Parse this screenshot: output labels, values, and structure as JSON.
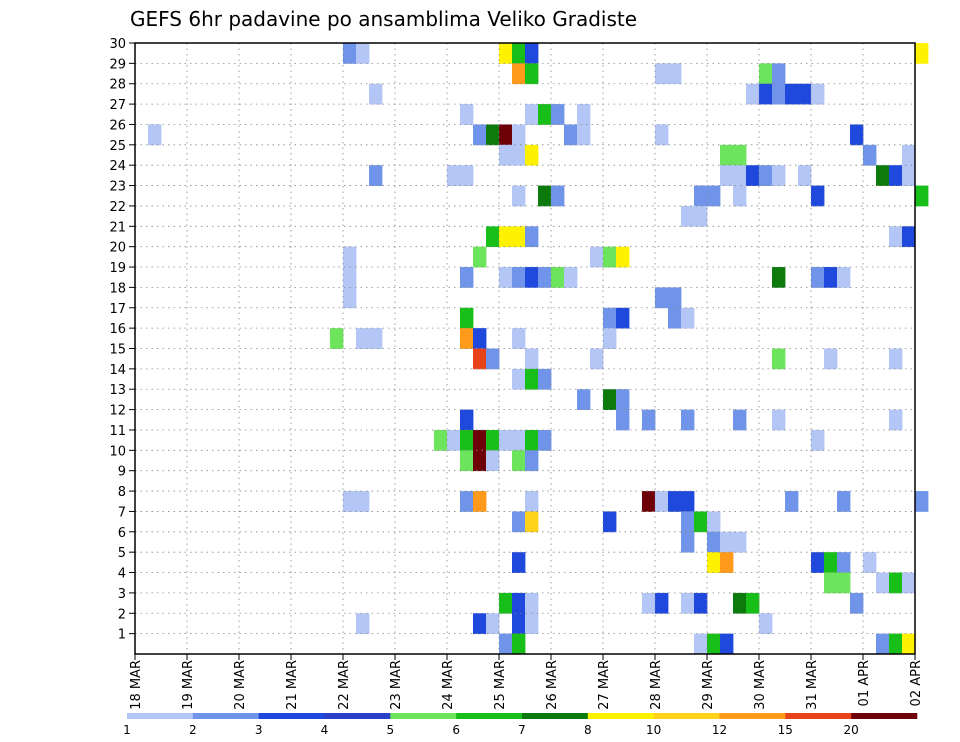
{
  "chart_data": {
    "type": "heatmap",
    "title": "GEFS 6hr padavine po ansamblima Veliko Gradiste",
    "x_tick_labels": [
      "18 MAR",
      "19 MAR",
      "20 MAR",
      "21 MAR",
      "22 MAR",
      "23 MAR",
      "24 MAR",
      "25 MAR",
      "26 MAR",
      "27 MAR",
      "28 MAR",
      "29 MAR",
      "30 MAR",
      "31 MAR",
      "01 APR",
      "02 APR"
    ],
    "y_tick_labels": [
      "1",
      "2",
      "3",
      "4",
      "5",
      "6",
      "7",
      "8",
      "9",
      "10",
      "11",
      "12",
      "13",
      "14",
      "15",
      "16",
      "17",
      "18",
      "19",
      "20",
      "21",
      "22",
      "23",
      "24",
      "25",
      "26",
      "27",
      "28",
      "29",
      "30"
    ],
    "x_range": [
      "18 MAR 00z",
      "02 APR 00z"
    ],
    "y_range": [
      0,
      30
    ],
    "grid": true,
    "legend": {
      "placement": "bottom",
      "levels": [
        "1",
        "2",
        "3",
        "4",
        "5",
        "6",
        "7",
        "8",
        "10",
        "12",
        "15",
        "20"
      ],
      "colors": [
        "#b3c6f5",
        "#6f94ea",
        "#1f48dc",
        "#2a3fc8",
        "#6ce45c",
        "#18bf18",
        "#0c7a0c",
        "#fff200",
        "#ffd31a",
        "#ff9a1a",
        "#e8421a",
        "#6e0008"
      ]
    },
    "cells": [
      {
        "member": 30,
        "time": "22 MAR 00z",
        "class": 2
      },
      {
        "member": 30,
        "time": "22 MAR 06z",
        "class": 1
      },
      {
        "member": 30,
        "time": "25 MAR 00z",
        "class": 8
      },
      {
        "member": 30,
        "time": "25 MAR 06z",
        "class": 6
      },
      {
        "member": 30,
        "time": "25 MAR 12z",
        "class": 3
      },
      {
        "member": 30,
        "time": "02 APR 00z",
        "class": 8
      },
      {
        "member": 29,
        "time": "25 MAR 06z",
        "class": 10
      },
      {
        "member": 29,
        "time": "25 MAR 12z",
        "class": 6
      },
      {
        "member": 29,
        "time": "28 MAR 00z",
        "class": 1
      },
      {
        "member": 29,
        "time": "28 MAR 06z",
        "class": 1
      },
      {
        "member": 29,
        "time": "30 MAR 00z",
        "class": 5
      },
      {
        "member": 29,
        "time": "30 MAR 06z",
        "class": 2
      },
      {
        "member": 28,
        "time": "22 MAR 12z",
        "class": 1
      },
      {
        "member": 28,
        "time": "29 MAR 18z",
        "class": 1
      },
      {
        "member": 28,
        "time": "30 MAR 00z",
        "class": 3
      },
      {
        "member": 28,
        "time": "30 MAR 06z",
        "class": 2
      },
      {
        "member": 28,
        "time": "30 MAR 12z",
        "class": 3
      },
      {
        "member": 28,
        "time": "30 MAR 18z",
        "class": 3
      },
      {
        "member": 28,
        "time": "31 MAR 00z",
        "class": 1
      },
      {
        "member": 27,
        "time": "24 MAR 06z",
        "class": 1
      },
      {
        "member": 27,
        "time": "25 MAR 12z",
        "class": 1
      },
      {
        "member": 27,
        "time": "25 MAR 18z",
        "class": 6
      },
      {
        "member": 27,
        "time": "26 MAR 00z",
        "class": 2
      },
      {
        "member": 27,
        "time": "26 MAR 12z",
        "class": 1
      },
      {
        "member": 26,
        "time": "18 MAR 06z",
        "class": 1
      },
      {
        "member": 26,
        "time": "24 MAR 12z",
        "class": 2
      },
      {
        "member": 26,
        "time": "24 MAR 18z",
        "class": 7
      },
      {
        "member": 26,
        "time": "25 MAR 00z",
        "class": 12
      },
      {
        "member": 26,
        "time": "25 MAR 06z",
        "class": 1
      },
      {
        "member": 26,
        "time": "26 MAR 06z",
        "class": 2
      },
      {
        "member": 26,
        "time": "26 MAR 12z",
        "class": 1
      },
      {
        "member": 26,
        "time": "28 MAR 00z",
        "class": 1
      },
      {
        "member": 26,
        "time": "31 MAR 18z",
        "class": 3
      },
      {
        "member": 25,
        "time": "25 MAR 00z",
        "class": 1
      },
      {
        "member": 25,
        "time": "25 MAR 06z",
        "class": 1
      },
      {
        "member": 25,
        "time": "25 MAR 12z",
        "class": 8
      },
      {
        "member": 25,
        "time": "29 MAR 06z",
        "class": 5
      },
      {
        "member": 25,
        "time": "29 MAR 12z",
        "class": 5
      },
      {
        "member": 25,
        "time": "01 APR 00z",
        "class": 2
      },
      {
        "member": 25,
        "time": "01 APR 18z",
        "class": 1
      },
      {
        "member": 24,
        "time": "22 MAR 12z",
        "class": 2
      },
      {
        "member": 24,
        "time": "24 MAR 00z",
        "class": 1
      },
      {
        "member": 24,
        "time": "24 MAR 06z",
        "class": 1
      },
      {
        "member": 24,
        "time": "29 MAR 06z",
        "class": 1
      },
      {
        "member": 24,
        "time": "29 MAR 12z",
        "class": 1
      },
      {
        "member": 24,
        "time": "29 MAR 18z",
        "class": 3
      },
      {
        "member": 24,
        "time": "30 MAR 00z",
        "class": 2
      },
      {
        "member": 24,
        "time": "30 MAR 06z",
        "class": 1
      },
      {
        "member": 24,
        "time": "30 MAR 18z",
        "class": 1
      },
      {
        "member": 24,
        "time": "01 APR 06z",
        "class": 7
      },
      {
        "member": 24,
        "time": "01 APR 12z",
        "class": 3
      },
      {
        "member": 24,
        "time": "01 APR 18z",
        "class": 1
      },
      {
        "member": 23,
        "time": "25 MAR 06z",
        "class": 1
      },
      {
        "member": 23,
        "time": "25 MAR 18z",
        "class": 7
      },
      {
        "member": 23,
        "time": "26 MAR 00z",
        "class": 2
      },
      {
        "member": 23,
        "time": "28 MAR 18z",
        "class": 2
      },
      {
        "member": 23,
        "time": "29 MAR 00z",
        "class": 2
      },
      {
        "member": 23,
        "time": "29 MAR 12z",
        "class": 1
      },
      {
        "member": 23,
        "time": "31 MAR 00z",
        "class": 3
      },
      {
        "member": 23,
        "time": "02 APR 00z",
        "class": 6
      },
      {
        "member": 22,
        "time": "28 MAR 12z",
        "class": 1
      },
      {
        "member": 22,
        "time": "28 MAR 18z",
        "class": 1
      },
      {
        "member": 21,
        "time": "24 MAR 18z",
        "class": 6
      },
      {
        "member": 21,
        "time": "25 MAR 00z",
        "class": 8
      },
      {
        "member": 21,
        "time": "25 MAR 06z",
        "class": 8
      },
      {
        "member": 21,
        "time": "25 MAR 12z",
        "class": 2
      },
      {
        "member": 21,
        "time": "01 APR 12z",
        "class": 1
      },
      {
        "member": 21,
        "time": "01 APR 18z",
        "class": 3
      },
      {
        "member": 20,
        "time": "22 MAR 00z",
        "class": 1
      },
      {
        "member": 20,
        "time": "24 MAR 12z",
        "class": 5
      },
      {
        "member": 20,
        "time": "26 MAR 18z",
        "class": 1
      },
      {
        "member": 20,
        "time": "27 MAR 00z",
        "class": 5
      },
      {
        "member": 20,
        "time": "27 MAR 06z",
        "class": 8
      },
      {
        "member": 19,
        "time": "22 MAR 00z",
        "class": 1
      },
      {
        "member": 19,
        "time": "24 MAR 06z",
        "class": 2
      },
      {
        "member": 19,
        "time": "25 MAR 00z",
        "class": 1
      },
      {
        "member": 19,
        "time": "25 MAR 06z",
        "class": 2
      },
      {
        "member": 19,
        "time": "25 MAR 12z",
        "class": 3
      },
      {
        "member": 19,
        "time": "25 MAR 18z",
        "class": 2
      },
      {
        "member": 19,
        "time": "26 MAR 00z",
        "class": 5
      },
      {
        "member": 19,
        "time": "26 MAR 06z",
        "class": 1
      },
      {
        "member": 19,
        "time": "30 MAR 06z",
        "class": 7
      },
      {
        "member": 19,
        "time": "31 MAR 00z",
        "class": 2
      },
      {
        "member": 19,
        "time": "31 MAR 06z",
        "class": 3
      },
      {
        "member": 19,
        "time": "31 MAR 12z",
        "class": 1
      },
      {
        "member": 18,
        "time": "22 MAR 00z",
        "class": 1
      },
      {
        "member": 18,
        "time": "28 MAR 00z",
        "class": 2
      },
      {
        "member": 18,
        "time": "28 MAR 06z",
        "class": 2
      },
      {
        "member": 17,
        "time": "24 MAR 06z",
        "class": 6
      },
      {
        "member": 17,
        "time": "27 MAR 00z",
        "class": 2
      },
      {
        "member": 17,
        "time": "27 MAR 06z",
        "class": 3
      },
      {
        "member": 17,
        "time": "28 MAR 06z",
        "class": 2
      },
      {
        "member": 17,
        "time": "28 MAR 12z",
        "class": 1
      },
      {
        "member": 16,
        "time": "21 MAR 18z",
        "class": 5
      },
      {
        "member": 16,
        "time": "22 MAR 06z",
        "class": 1
      },
      {
        "member": 16,
        "time": "22 MAR 12z",
        "class": 1
      },
      {
        "member": 16,
        "time": "24 MAR 06z",
        "class": 10
      },
      {
        "member": 16,
        "time": "24 MAR 12z",
        "class": 3
      },
      {
        "member": 16,
        "time": "25 MAR 06z",
        "class": 1
      },
      {
        "member": 16,
        "time": "27 MAR 00z",
        "class": 1
      },
      {
        "member": 15,
        "time": "24 MAR 12z",
        "class": 11
      },
      {
        "member": 15,
        "time": "24 MAR 18z",
        "class": 2
      },
      {
        "member": 15,
        "time": "25 MAR 12z",
        "class": 1
      },
      {
        "member": 15,
        "time": "26 MAR 18z",
        "class": 1
      },
      {
        "member": 15,
        "time": "30 MAR 06z",
        "class": 5
      },
      {
        "member": 15,
        "time": "31 MAR 06z",
        "class": 1
      },
      {
        "member": 15,
        "time": "01 APR 12z",
        "class": 1
      },
      {
        "member": 14,
        "time": "25 MAR 06z",
        "class": 1
      },
      {
        "member": 14,
        "time": "25 MAR 12z",
        "class": 6
      },
      {
        "member": 14,
        "time": "25 MAR 18z",
        "class": 2
      },
      {
        "member": 13,
        "time": "26 MAR 12z",
        "class": 2
      },
      {
        "member": 13,
        "time": "27 MAR 00z",
        "class": 7
      },
      {
        "member": 13,
        "time": "27 MAR 06z",
        "class": 2
      },
      {
        "member": 12,
        "time": "24 MAR 06z",
        "class": 3
      },
      {
        "member": 12,
        "time": "27 MAR 06z",
        "class": 2
      },
      {
        "member": 12,
        "time": "27 MAR 18z",
        "class": 2
      },
      {
        "member": 12,
        "time": "28 MAR 12z",
        "class": 2
      },
      {
        "member": 12,
        "time": "29 MAR 12z",
        "class": 2
      },
      {
        "member": 12,
        "time": "30 MAR 06z",
        "class": 1
      },
      {
        "member": 12,
        "time": "01 APR 12z",
        "class": 1
      },
      {
        "member": 11,
        "time": "23 MAR 18z",
        "class": 5
      },
      {
        "member": 11,
        "time": "24 MAR 00z",
        "class": 1
      },
      {
        "member": 11,
        "time": "24 MAR 06z",
        "class": 6
      },
      {
        "member": 11,
        "time": "24 MAR 12z",
        "class": 12
      },
      {
        "member": 11,
        "time": "24 MAR 18z",
        "class": 6
      },
      {
        "member": 11,
        "time": "25 MAR 00z",
        "class": 1
      },
      {
        "member": 11,
        "time": "25 MAR 06z",
        "class": 1
      },
      {
        "member": 11,
        "time": "25 MAR 12z",
        "class": 6
      },
      {
        "member": 11,
        "time": "25 MAR 18z",
        "class": 2
      },
      {
        "member": 11,
        "time": "31 MAR 00z",
        "class": 1
      },
      {
        "member": 10,
        "time": "24 MAR 06z",
        "class": 5
      },
      {
        "member": 10,
        "time": "24 MAR 12z",
        "class": 12
      },
      {
        "member": 10,
        "time": "24 MAR 18z",
        "class": 1
      },
      {
        "member": 10,
        "time": "25 MAR 06z",
        "class": 5
      },
      {
        "member": 10,
        "time": "25 MAR 12z",
        "class": 2
      },
      {
        "member": 8,
        "time": "22 MAR 00z",
        "class": 1
      },
      {
        "member": 8,
        "time": "22 MAR 06z",
        "class": 1
      },
      {
        "member": 8,
        "time": "24 MAR 06z",
        "class": 2
      },
      {
        "member": 8,
        "time": "24 MAR 12z",
        "class": 10
      },
      {
        "member": 8,
        "time": "25 MAR 12z",
        "class": 1
      },
      {
        "member": 8,
        "time": "27 MAR 18z",
        "class": 12
      },
      {
        "member": 8,
        "time": "28 MAR 00z",
        "class": 1
      },
      {
        "member": 8,
        "time": "28 MAR 06z",
        "class": 3
      },
      {
        "member": 8,
        "time": "28 MAR 12z",
        "class": 3
      },
      {
        "member": 8,
        "time": "30 MAR 12z",
        "class": 2
      },
      {
        "member": 8,
        "time": "31 MAR 12z",
        "class": 2
      },
      {
        "member": 8,
        "time": "02 APR 00z",
        "class": 2
      },
      {
        "member": 7,
        "time": "25 MAR 06z",
        "class": 2
      },
      {
        "member": 7,
        "time": "25 MAR 12z",
        "class": 9
      },
      {
        "member": 7,
        "time": "27 MAR 00z",
        "class": 3
      },
      {
        "member": 7,
        "time": "28 MAR 12z",
        "class": 2
      },
      {
        "member": 7,
        "time": "28 MAR 18z",
        "class": 6
      },
      {
        "member": 7,
        "time": "29 MAR 00z",
        "class": 1
      },
      {
        "member": 6,
        "time": "28 MAR 12z",
        "class": 2
      },
      {
        "member": 6,
        "time": "29 MAR 00z",
        "class": 2
      },
      {
        "member": 6,
        "time": "29 MAR 06z",
        "class": 1
      },
      {
        "member": 6,
        "time": "29 MAR 12z",
        "class": 1
      },
      {
        "member": 5,
        "time": "25 MAR 06z",
        "class": 3
      },
      {
        "member": 5,
        "time": "29 MAR 00z",
        "class": 8
      },
      {
        "member": 5,
        "time": "29 MAR 06z",
        "class": 10
      },
      {
        "member": 5,
        "time": "31 MAR 00z",
        "class": 3
      },
      {
        "member": 5,
        "time": "31 MAR 06z",
        "class": 6
      },
      {
        "member": 5,
        "time": "31 MAR 12z",
        "class": 2
      },
      {
        "member": 5,
        "time": "01 APR 00z",
        "class": 1
      },
      {
        "member": 4,
        "time": "31 MAR 06z",
        "class": 5
      },
      {
        "member": 4,
        "time": "31 MAR 12z",
        "class": 5
      },
      {
        "member": 4,
        "time": "01 APR 06z",
        "class": 1
      },
      {
        "member": 4,
        "time": "01 APR 12z",
        "class": 6
      },
      {
        "member": 4,
        "time": "01 APR 18z",
        "class": 1
      },
      {
        "member": 3,
        "time": "25 MAR 00z",
        "class": 6
      },
      {
        "member": 3,
        "time": "25 MAR 06z",
        "class": 3
      },
      {
        "member": 3,
        "time": "25 MAR 12z",
        "class": 1
      },
      {
        "member": 3,
        "time": "27 MAR 18z",
        "class": 1
      },
      {
        "member": 3,
        "time": "28 MAR 00z",
        "class": 3
      },
      {
        "member": 3,
        "time": "28 MAR 12z",
        "class": 1
      },
      {
        "member": 3,
        "time": "28 MAR 18z",
        "class": 3
      },
      {
        "member": 3,
        "time": "29 MAR 12z",
        "class": 7
      },
      {
        "member": 3,
        "time": "29 MAR 18z",
        "class": 6
      },
      {
        "member": 3,
        "time": "31 MAR 18z",
        "class": 2
      },
      {
        "member": 2,
        "time": "22 MAR 06z",
        "class": 1
      },
      {
        "member": 2,
        "time": "24 MAR 12z",
        "class": 3
      },
      {
        "member": 2,
        "time": "24 MAR 18z",
        "class": 1
      },
      {
        "member": 2,
        "time": "25 MAR 06z",
        "class": 3
      },
      {
        "member": 2,
        "time": "25 MAR 12z",
        "class": 1
      },
      {
        "member": 2,
        "time": "30 MAR 00z",
        "class": 1
      },
      {
        "member": 1,
        "time": "25 MAR 00z",
        "class": 2
      },
      {
        "member": 1,
        "time": "25 MAR 06z",
        "class": 6
      },
      {
        "member": 1,
        "time": "28 MAR 18z",
        "class": 1
      },
      {
        "member": 1,
        "time": "29 MAR 00z",
        "class": 6
      },
      {
        "member": 1,
        "time": "29 MAR 06z",
        "class": 3
      },
      {
        "member": 1,
        "time": "01 APR 06z",
        "class": 2
      },
      {
        "member": 1,
        "time": "01 APR 12z",
        "class": 6
      },
      {
        "member": 1,
        "time": "01 APR 18z",
        "class": 8
      }
    ]
  }
}
